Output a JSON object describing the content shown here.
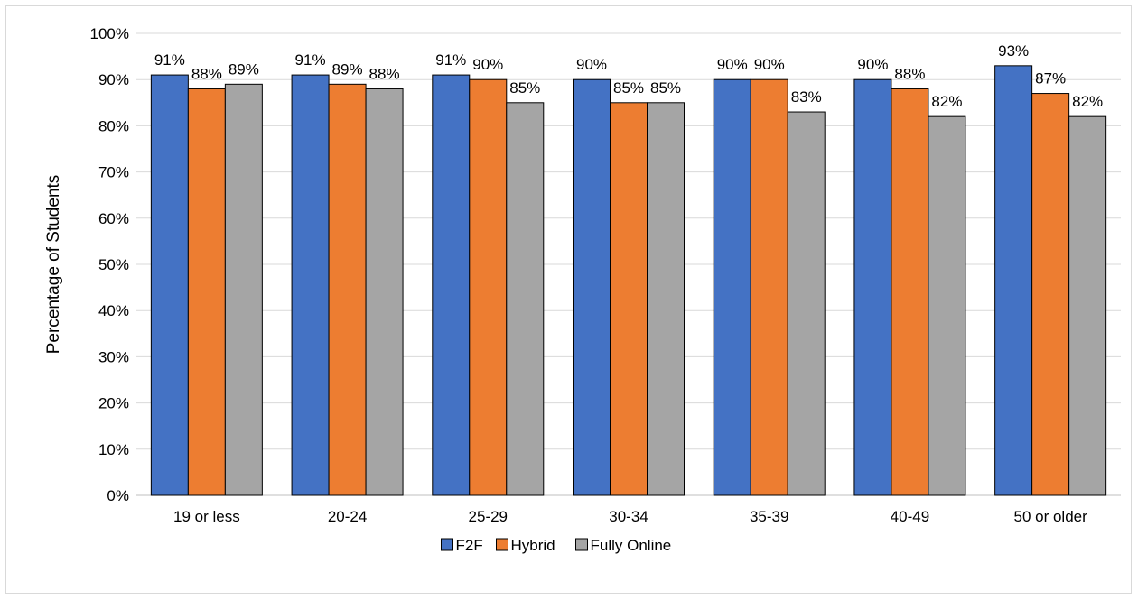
{
  "chart_data": {
    "type": "bar",
    "title": "",
    "xlabel": "",
    "ylabel": "Percentage of Students",
    "ylim": [
      0,
      100
    ],
    "y_ticks": [
      "0%",
      "10%",
      "20%",
      "30%",
      "40%",
      "50%",
      "60%",
      "70%",
      "80%",
      "90%",
      "100%"
    ],
    "grid": true,
    "legend_position": "bottom",
    "categories": [
      "19 or less",
      "20-24",
      "25-29",
      "30-34",
      "35-39",
      "40-49",
      "50 or older"
    ],
    "series": [
      {
        "name": "F2F",
        "color": "#4472c4",
        "values": [
          91,
          91,
          91,
          90,
          90,
          90,
          93
        ],
        "labels": [
          "91%",
          "91%",
          "91%",
          "90%",
          "90%",
          "90%",
          "93%"
        ]
      },
      {
        "name": "Hybrid",
        "color": "#ed7d31",
        "values": [
          88,
          89,
          90,
          85,
          90,
          88,
          87
        ],
        "labels": [
          "88%",
          "89%",
          "90%",
          "85%",
          "90%",
          "88%",
          "87%"
        ]
      },
      {
        "name": "Fully Online",
        "color": "#a5a5a5",
        "values": [
          89,
          88,
          85,
          85,
          83,
          82,
          82
        ],
        "labels": [
          "89%",
          "88%",
          "85%",
          "85%",
          "83%",
          "82%",
          "82%"
        ]
      }
    ]
  }
}
